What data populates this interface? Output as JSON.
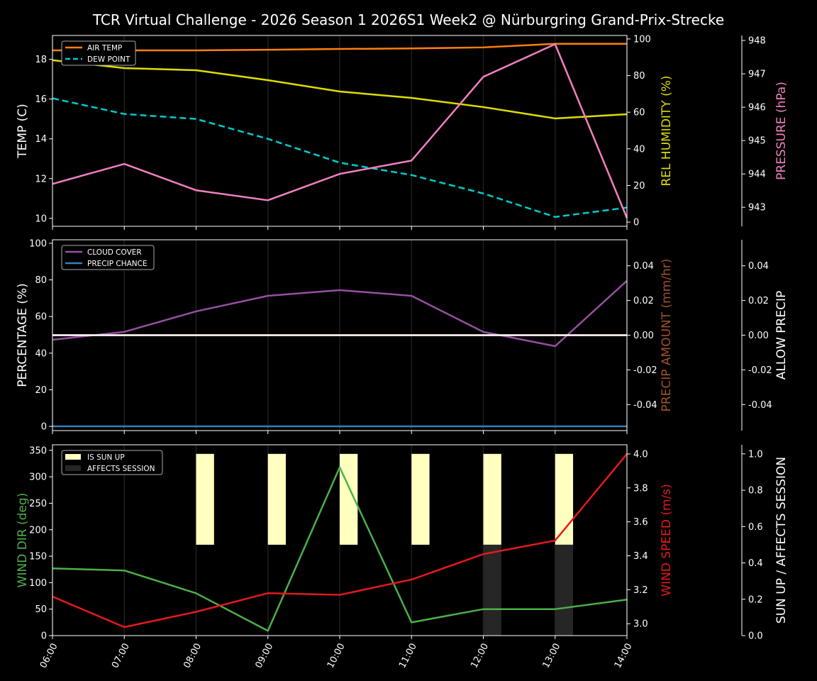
{
  "chart_data": {
    "type": "line",
    "title": "TCR Virtual Challenge - 2026 Season 1 2026S1 Week2 @ Nürburgring Grand-Prix-Strecke",
    "x": [
      "06:00",
      "07:00",
      "08:00",
      "09:00",
      "10:00",
      "11:00",
      "12:00",
      "13:00",
      "14:00"
    ],
    "grid": "vertical",
    "background": "#000000",
    "panels": [
      {
        "axes": {
          "left": {
            "label": "TEMP (C)",
            "label_color": "#ffffff",
            "range": [
              9.6,
              19.2
            ],
            "ticks": [
              10,
              12,
              14,
              16,
              18
            ]
          },
          "right": {
            "label": "REL HUMIDITY (%)",
            "label_color": "#dddd00",
            "range": [
              -2.3,
              101.9
            ],
            "ticks": [
              0,
              20,
              40,
              60,
              80,
              100
            ]
          },
          "far": {
            "label": "PRESSURE (hPa)",
            "label_color": "#f080c0",
            "range": [
              942.43,
              948.15
            ],
            "ticks": [
              943,
              944,
              945,
              946,
              947,
              948
            ]
          }
        },
        "legend": {
          "placement": "upper-left",
          "entries": [
            "AIR TEMP",
            "DEW POINT"
          ]
        },
        "series": [
          {
            "name": "AIR TEMP",
            "axis": "left",
            "color": "#ff7f0e",
            "dash": false,
            "values": [
              18.45,
              18.45,
              18.45,
              18.48,
              18.52,
              18.55,
              18.6,
              18.78,
              18.78
            ]
          },
          {
            "name": "DEW POINT",
            "axis": "left",
            "color": "#00cccc",
            "dash": true,
            "values": [
              16.04,
              15.25,
              15.0,
              14.0,
              12.8,
              12.18,
              11.25,
              10.07,
              10.54
            ]
          },
          {
            "axis": "right",
            "color": "#dddd00",
            "dash": false,
            "values": [
              88.4,
              84.1,
              82.9,
              77.5,
              71.3,
              67.8,
              62.8,
              56.6,
              58.9
            ]
          },
          {
            "axis": "far",
            "color": "#f080c0",
            "dash": false,
            "values": [
              943.7,
              944.3,
              943.51,
              943.21,
              944.0,
              944.4,
              946.91,
              947.89,
              942.68
            ]
          }
        ]
      },
      {
        "axes": {
          "left": {
            "label": "PERCENTAGE (%)",
            "label_color": "#ffffff",
            "range": [
              -2.3,
              101.9
            ],
            "ticks": [
              0,
              20,
              40,
              60,
              80,
              100
            ]
          },
          "right": {
            "label": "PRECIP AMOUNT (mm/hr)",
            "label_color": "#a0522d",
            "range": [
              -0.055,
              0.055
            ],
            "ticks": [
              -0.04,
              -0.02,
              0.0,
              0.02,
              0.04
            ]
          },
          "far": {
            "label": "ALLOW PRECIP",
            "label_color": "#ffffff",
            "range": [
              -0.055,
              0.055
            ],
            "ticks": [
              -0.04,
              -0.02,
              0.0,
              0.02,
              0.04
            ]
          }
        },
        "legend": {
          "placement": "upper-left",
          "entries": [
            "CLOUD COVER",
            "PRECIP CHANCE"
          ]
        },
        "series": [
          {
            "name": "CLOUD COVER",
            "axis": "left",
            "color": "#984ea3",
            "dash": false,
            "values": [
              47.3,
              51.6,
              62.8,
              71.3,
              74.4,
              71.3,
              51.6,
              43.8,
              79.5
            ]
          },
          {
            "name": "PRECIP CHANCE",
            "axis": "left",
            "color": "#377eb8",
            "dash": false,
            "values": [
              0,
              0,
              0,
              0,
              0,
              0,
              0,
              0,
              0
            ]
          },
          {
            "axis": "right",
            "color": "#a0522d",
            "dash": false,
            "values": [
              0,
              0,
              0,
              0,
              0,
              0,
              0,
              0,
              0
            ]
          },
          {
            "axis": "far",
            "color": "#ffffff",
            "dash": false,
            "values": [
              0,
              0,
              0,
              0,
              0,
              0,
              0,
              0,
              0
            ]
          }
        ]
      },
      {
        "axes": {
          "left": {
            "label": "WIND DIR (deg)",
            "label_color": "#4daf4a",
            "range": [
              0,
              360.5
            ],
            "ticks": [
              0,
              50,
              100,
              150,
              200,
              250,
              300,
              350
            ]
          },
          "right": {
            "label": "WIND SPEED (m/s)",
            "label_color": "#e41a1c",
            "range": [
              2.93,
              4.054
            ],
            "ticks": [
              3.0,
              3.2,
              3.4,
              3.6,
              3.8,
              4.0
            ]
          },
          "far": {
            "label": "SUN UP / AFFECTS SESSION",
            "label_color": "#ffffff",
            "range": [
              0,
              1.05
            ],
            "ticks": [
              0.0,
              0.2,
              0.4,
              0.6,
              0.8,
              1.0
            ]
          }
        },
        "legend": {
          "placement": "upper-left",
          "entries": [
            "IS SUN UP",
            "AFFECTS SESSION"
          ]
        },
        "bars": [
          {
            "name": "IS SUN UP",
            "axis": "far",
            "color": "#ffffc0",
            "base": 0.5,
            "values": [
              0,
              0,
              1,
              1,
              1,
              1,
              1,
              1,
              0
            ]
          },
          {
            "name": "AFFECTS SESSION",
            "axis": "far",
            "color": "#262626",
            "base": 0.0,
            "values": [
              0,
              0,
              0,
              0,
              0,
              0,
              1,
              1,
              0
            ]
          }
        ],
        "series": [
          {
            "axis": "left",
            "color": "#4daf4a",
            "dash": false,
            "values": [
              127,
              123,
              80,
              9,
              318,
              25,
              50,
              50,
              68
            ]
          },
          {
            "axis": "right",
            "color": "#e41a1c",
            "dash": false,
            "values": [
              3.16,
              2.98,
              3.07,
              3.18,
              3.17,
              3.26,
              3.41,
              3.49,
              4.0
            ]
          }
        ]
      }
    ]
  }
}
